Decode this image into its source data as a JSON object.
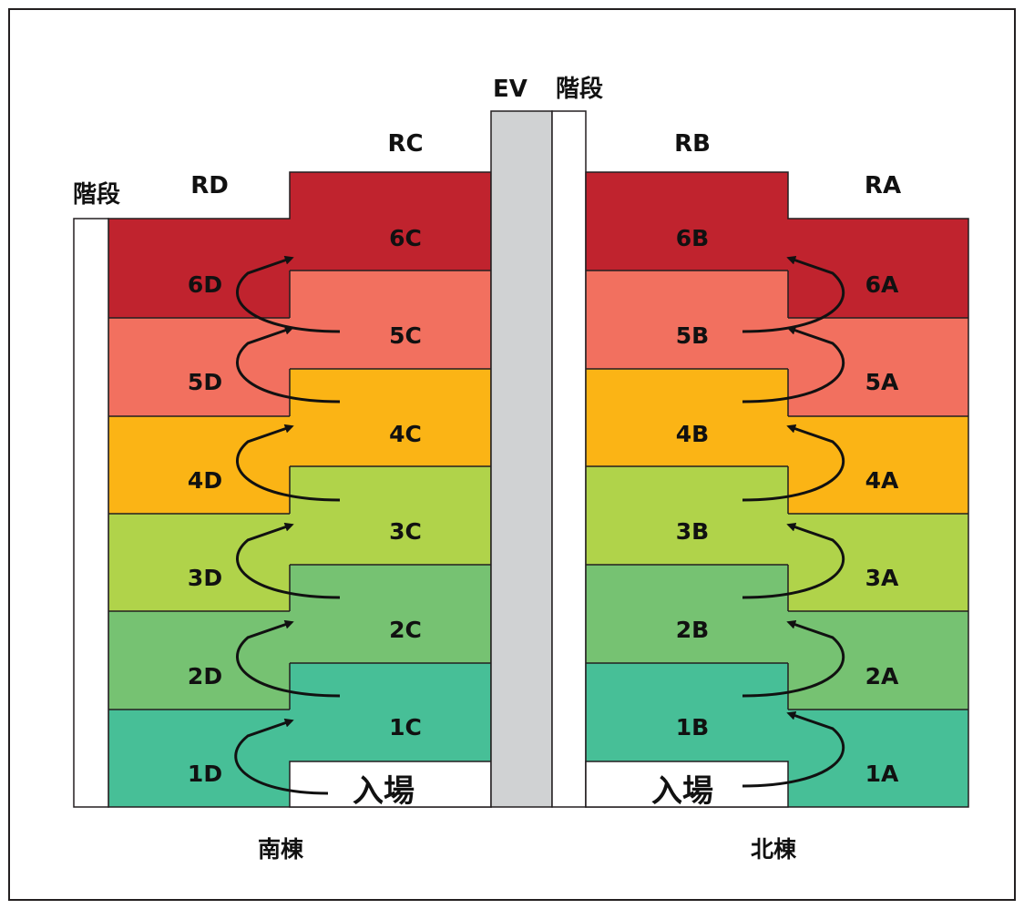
{
  "colors": {
    "floor6": "#c0232e",
    "floor5": "#f2705f",
    "floor4": "#fbb415",
    "floor3": "#b0d34a",
    "floor2": "#76c272",
    "floor1": "#47bf97",
    "elevator": "#d0d2d3",
    "stair": "#ffffff",
    "outline": "#231f20"
  },
  "labels": {
    "ev": "EV",
    "stair_center": "階段",
    "stair_left": "階段",
    "entrance_south": "入場",
    "entrance_north": "入場",
    "building_south": "南棟",
    "building_north": "北棟"
  },
  "columns": {
    "RD": "RD",
    "RC": "RC",
    "RB": "RB",
    "RA": "RA"
  },
  "units": {
    "6D": "6D",
    "5D": "5D",
    "4D": "4D",
    "3D": "3D",
    "2D": "2D",
    "1D": "1D",
    "6C": "6C",
    "5C": "5C",
    "4C": "4C",
    "3C": "3C",
    "2C": "2C",
    "1C": "1C",
    "6B": "6B",
    "5B": "5B",
    "4B": "4B",
    "3B": "3B",
    "2B": "2B",
    "1B": "1B",
    "6A": "6A",
    "5A": "5A",
    "4A": "4A",
    "3A": "3A",
    "2A": "2A",
    "1A": "1A"
  }
}
